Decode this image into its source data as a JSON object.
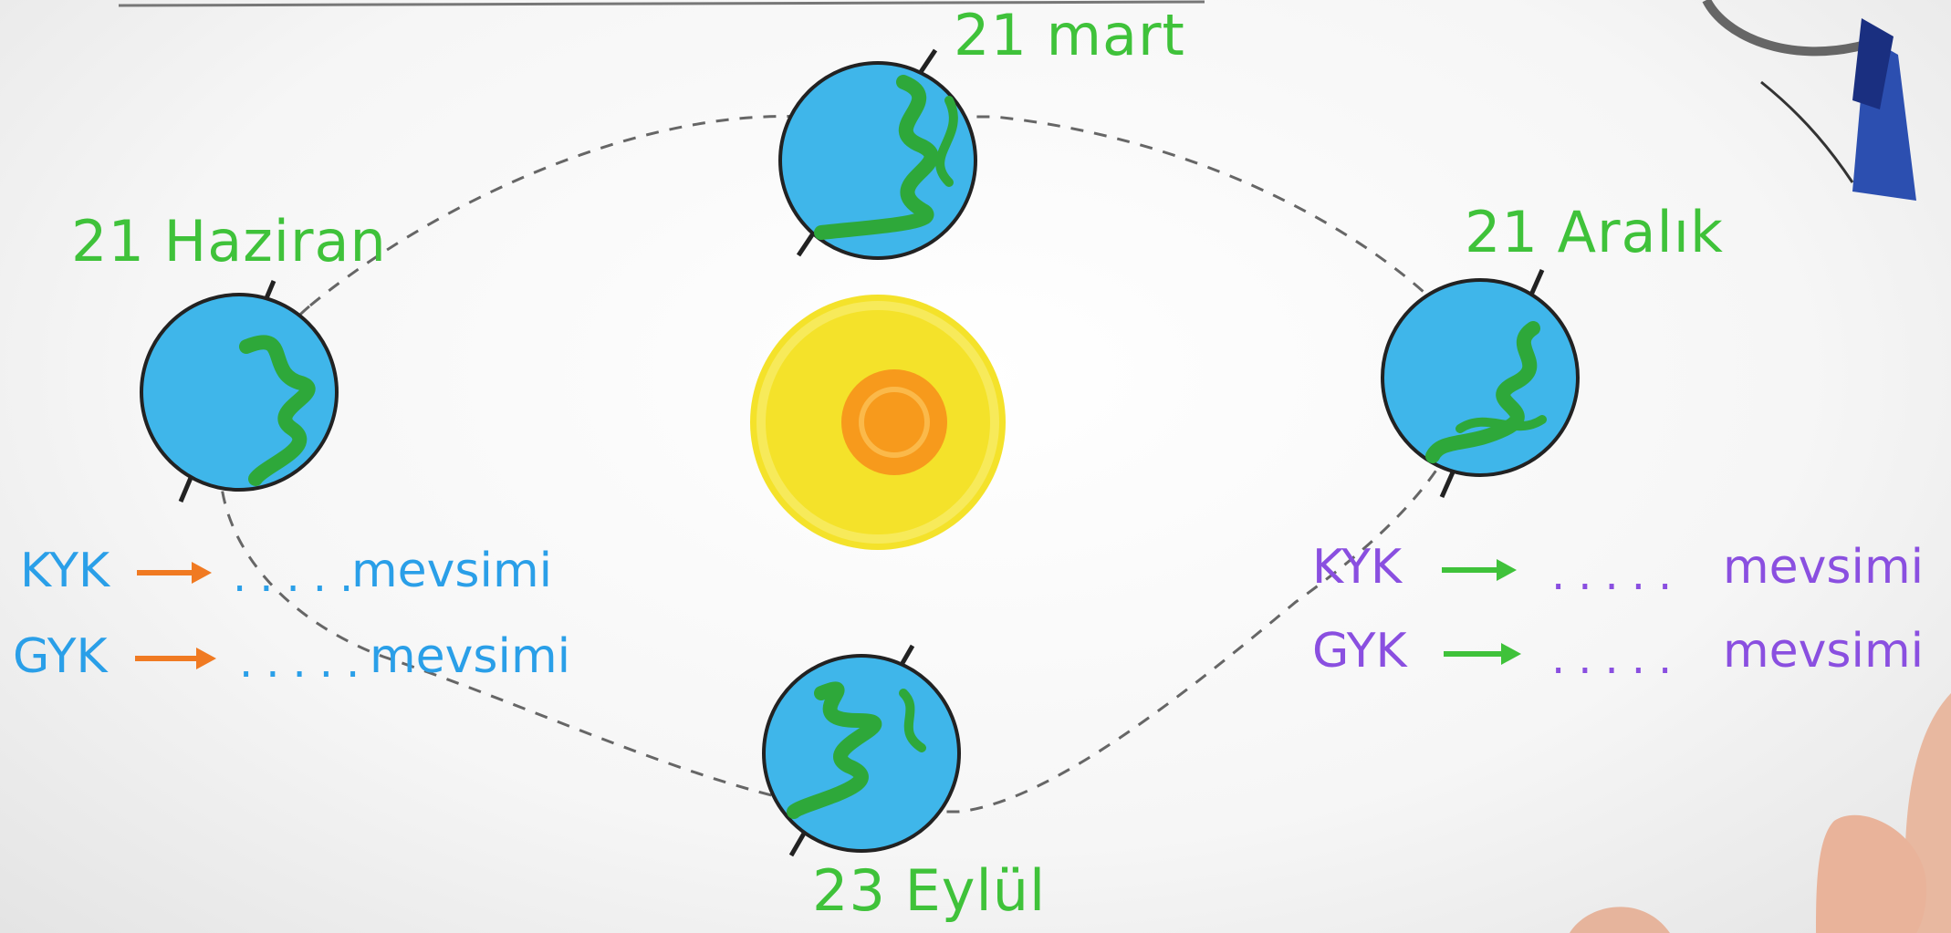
{
  "dates": {
    "march": "21 mart",
    "june": "21 Haziran",
    "december": "21 Aralık",
    "september": "23 Eylül"
  },
  "left_panel": {
    "row1": {
      "hemisphere": "KYK",
      "blank": ".....",
      "word": "mevsimi"
    },
    "row2": {
      "hemisphere": "GYK",
      "blank": ".....",
      "word": "mevsimi"
    }
  },
  "right_panel": {
    "row1": {
      "hemisphere": "KYK",
      "blank": ".....",
      "word": "mevsimi"
    },
    "row2": {
      "hemisphere": "GYK",
      "blank": ".....",
      "word": "mevsimi"
    }
  },
  "colors": {
    "date_text": "#3fc23a",
    "left_text": "#2a9fe8",
    "left_arrow": "#f07a22",
    "right_text": "#8a4fe0",
    "right_arrow": "#3fc23a",
    "earth_water": "#3fb6ea",
    "earth_land": "#2ea83a",
    "sun_outer": "#f4e22a",
    "sun_core": "#f79a1c"
  }
}
